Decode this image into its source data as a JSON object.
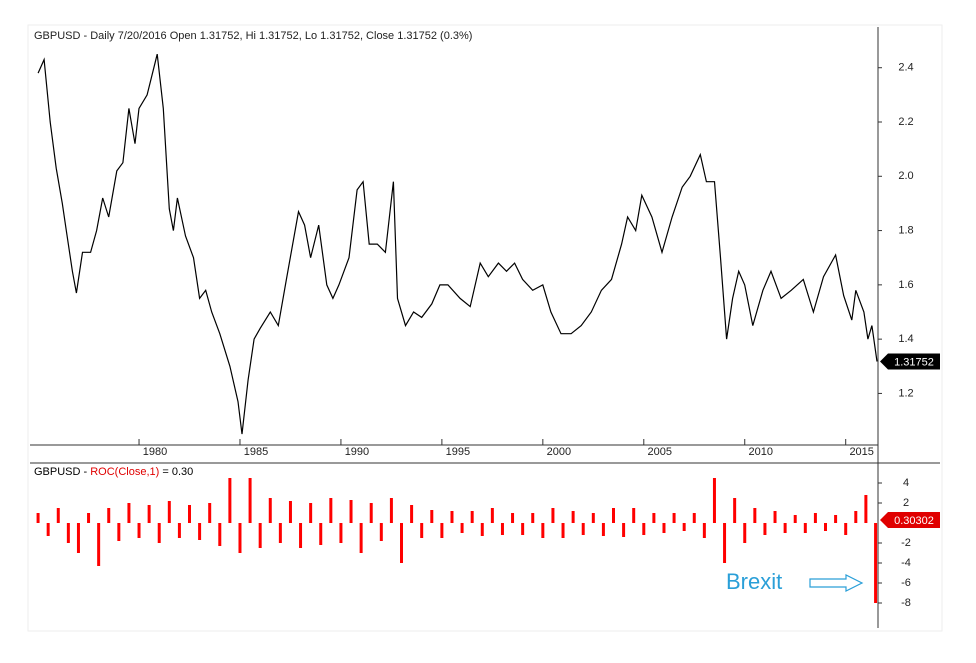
{
  "chart_data": [
    {
      "type": "line",
      "title": "GBPUSD - Daily 7/20/2016 Open 1.31752, Hi 1.31752, Lo 1.31752, Close 1.31752 (0.3%)",
      "color": "#000000",
      "x": [
        1975.0,
        1975.3,
        1975.6,
        1975.9,
        1976.2,
        1976.4,
        1976.7,
        1976.9,
        1977.2,
        1977.6,
        1977.9,
        1978.2,
        1978.5,
        1978.9,
        1979.2,
        1979.5,
        1979.8,
        1980.0,
        1980.4,
        1980.8,
        1980.9,
        1981.2,
        1981.5,
        1981.7,
        1981.9,
        1982.3,
        1982.7,
        1983.0,
        1983.3,
        1983.6,
        1984.0,
        1984.5,
        1984.9,
        1985.1,
        1985.4,
        1985.7,
        1986.0,
        1986.5,
        1986.9,
        1987.3,
        1987.9,
        1988.2,
        1988.5,
        1988.9,
        1989.3,
        1989.6,
        1989.9,
        1990.4,
        1990.8,
        1991.1,
        1991.4,
        1991.8,
        1992.2,
        1992.6,
        1992.8,
        1993.2,
        1993.6,
        1994.0,
        1994.5,
        1994.9,
        1995.3,
        1995.9,
        1996.4,
        1996.9,
        1997.3,
        1997.8,
        1998.2,
        1998.6,
        1999.0,
        1999.5,
        2000.0,
        2000.4,
        2000.9,
        2001.4,
        2001.9,
        2002.4,
        2002.9,
        2003.4,
        2003.9,
        2004.2,
        2004.6,
        2004.9,
        2005.4,
        2005.9,
        2006.4,
        2006.9,
        2007.3,
        2007.8,
        2008.1,
        2008.5,
        2008.8,
        2009.1,
        2009.4,
        2009.7,
        2010.0,
        2010.4,
        2010.9,
        2011.3,
        2011.8,
        2012.3,
        2012.9,
        2013.4,
        2013.9,
        2014.5,
        2014.9,
        2015.3,
        2015.5,
        2015.9,
        2016.1,
        2016.3,
        2016.55
      ],
      "values": [
        2.38,
        2.43,
        2.2,
        2.03,
        1.9,
        1.8,
        1.65,
        1.57,
        1.72,
        1.72,
        1.8,
        1.92,
        1.85,
        2.02,
        2.05,
        2.25,
        2.12,
        2.25,
        2.3,
        2.42,
        2.45,
        2.25,
        1.88,
        1.8,
        1.92,
        1.78,
        1.7,
        1.55,
        1.58,
        1.5,
        1.42,
        1.3,
        1.17,
        1.05,
        1.25,
        1.4,
        1.44,
        1.5,
        1.45,
        1.62,
        1.87,
        1.82,
        1.7,
        1.82,
        1.6,
        1.55,
        1.6,
        1.7,
        1.95,
        1.98,
        1.75,
        1.75,
        1.72,
        1.98,
        1.55,
        1.45,
        1.5,
        1.48,
        1.53,
        1.6,
        1.6,
        1.55,
        1.52,
        1.68,
        1.63,
        1.68,
        1.65,
        1.68,
        1.62,
        1.58,
        1.6,
        1.5,
        1.42,
        1.42,
        1.45,
        1.5,
        1.58,
        1.62,
        1.75,
        1.85,
        1.8,
        1.93,
        1.85,
        1.72,
        1.85,
        1.96,
        2.0,
        2.08,
        1.98,
        1.98,
        1.7,
        1.4,
        1.55,
        1.65,
        1.6,
        1.45,
        1.58,
        1.65,
        1.55,
        1.58,
        1.62,
        1.5,
        1.63,
        1.71,
        1.56,
        1.47,
        1.58,
        1.5,
        1.4,
        1.45,
        1.31752
      ],
      "last_value": 1.31752,
      "xlim": [
        1974.6,
        2016.6
      ],
      "xticks": [
        1980,
        1985,
        1990,
        1995,
        2000,
        2005,
        2010,
        2015
      ],
      "ylim": [
        1.01,
        2.55
      ],
      "yticks": [
        1.2,
        1.4,
        1.6,
        1.8,
        {
          "value": 2,
          "label": "2.0"
        },
        2.2,
        2.4
      ]
    },
    {
      "type": "bar",
      "title_parts": [
        "GBPUSD - ",
        "ROC(Close,1)",
        " = 0.30"
      ],
      "title_colors": [
        "#000000",
        "#e00000",
        "#000000"
      ],
      "color": "#ff0000",
      "x": [
        1975.0,
        1975.5,
        1976.0,
        1976.5,
        1977.0,
        1977.5,
        1978.0,
        1978.5,
        1979.0,
        1979.5,
        1980.0,
        1980.5,
        1981.0,
        1981.5,
        1982.0,
        1982.5,
        1983.0,
        1983.5,
        1984.0,
        1984.5,
        1985.0,
        1985.5,
        1986.0,
        1986.5,
        1987.0,
        1987.5,
        1988.0,
        1988.5,
        1989.0,
        1989.5,
        1990.0,
        1990.5,
        1991.0,
        1991.5,
        1992.0,
        1992.5,
        1993.0,
        1993.5,
        1994.0,
        1994.5,
        1995.0,
        1995.5,
        1996.0,
        1996.5,
        1997.0,
        1997.5,
        1998.0,
        1998.5,
        1999.0,
        1999.5,
        2000.0,
        2000.5,
        2001.0,
        2001.5,
        2002.0,
        2002.5,
        2003.0,
        2003.5,
        2004.0,
        2004.5,
        2005.0,
        2005.5,
        2006.0,
        2006.5,
        2007.0,
        2007.5,
        2008.0,
        2008.5,
        2009.0,
        2009.5,
        2010.0,
        2010.5,
        2011.0,
        2011.5,
        2012.0,
        2012.5,
        2013.0,
        2013.5,
        2014.0,
        2014.5,
        2015.0,
        2015.5,
        2016.0,
        2016.48
      ],
      "values": [
        1.0,
        -1.3,
        1.5,
        -2.0,
        -3.0,
        1.0,
        -4.3,
        1.5,
        -1.8,
        2.0,
        -1.5,
        1.8,
        -2.0,
        2.2,
        -1.5,
        1.8,
        -1.7,
        2.0,
        -2.3,
        4.5,
        -3.0,
        4.5,
        -2.5,
        2.5,
        -2.0,
        2.2,
        -2.5,
        2.0,
        -2.2,
        2.5,
        -2.0,
        2.3,
        -3.0,
        2.0,
        -1.8,
        2.5,
        -4.0,
        1.8,
        -1.5,
        1.3,
        -1.5,
        1.2,
        -1.0,
        1.2,
        -1.3,
        1.5,
        -1.2,
        1.0,
        -1.2,
        1.0,
        -1.5,
        1.5,
        -1.5,
        1.2,
        -1.2,
        1.0,
        -1.3,
        1.5,
        -1.4,
        1.5,
        -1.2,
        1.0,
        -1.0,
        1.0,
        -0.8,
        1.0,
        -1.5,
        4.5,
        -4.0,
        2.5,
        -2.0,
        1.5,
        -1.2,
        1.2,
        -1.0,
        0.8,
        -1.0,
        1.0,
        -0.8,
        0.8,
        -1.2,
        1.2,
        2.8,
        -8.0
      ],
      "last_value": 0.30302,
      "annotation": "Brexit",
      "xlim": [
        1974.6,
        2016.6
      ],
      "ylim": [
        -10.5,
        6
      ],
      "yticks": [
        4,
        2,
        -2,
        -4,
        -6,
        -8
      ]
    }
  ]
}
